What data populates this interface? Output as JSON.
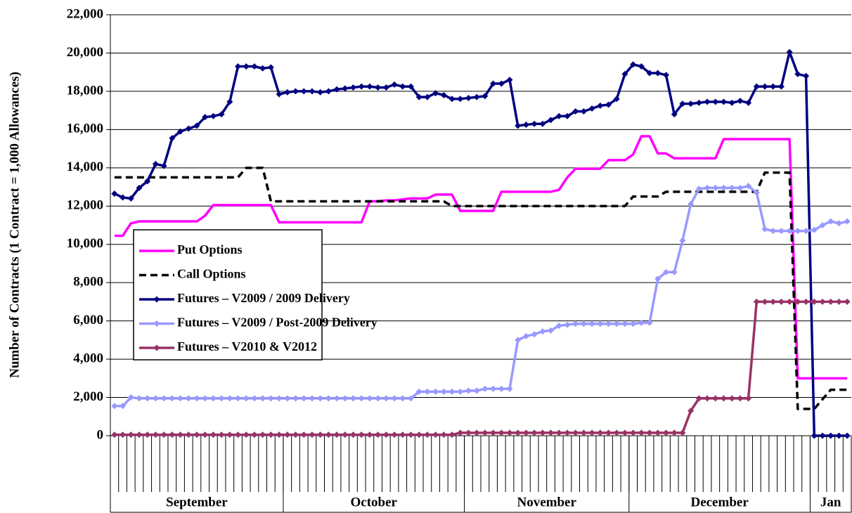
{
  "chart_data": {
    "type": "line",
    "y_label": "Number of Contracts (1 Contract = 1,000 Allowances)",
    "categories": [
      null,
      null,
      null,
      null,
      null,
      null,
      null,
      null,
      null,
      null,
      null,
      null,
      null,
      null,
      null,
      null,
      null,
      null,
      null,
      null,
      null,
      null,
      null,
      null,
      null,
      null,
      null,
      null,
      null,
      null,
      null,
      null,
      null,
      null,
      null,
      null,
      null,
      null,
      null,
      null,
      null,
      null,
      null,
      null,
      null,
      null,
      null,
      null,
      null,
      null,
      null,
      null,
      null,
      null,
      null,
      null,
      null,
      null,
      null,
      null,
      null,
      null,
      null,
      null,
      null,
      null,
      null,
      null,
      null,
      null,
      null,
      null,
      null,
      null,
      null,
      null,
      null,
      null,
      null,
      null,
      null,
      null,
      null,
      null,
      null,
      null,
      null,
      null,
      null,
      null
    ],
    "x_groups": [
      {
        "label": "September",
        "count": 21
      },
      {
        "label": "October",
        "count": 22
      },
      {
        "label": "November",
        "count": 20
      },
      {
        "label": "December",
        "count": 22
      },
      {
        "label": "Jan",
        "count": 5
      }
    ],
    "ylim": [
      0,
      22000
    ],
    "yticks": [
      0,
      {
        "value": 2000,
        "label": "2,000"
      },
      {
        "value": 4000,
        "label": "4,000"
      },
      {
        "value": 6000,
        "label": "6,000"
      },
      {
        "value": 8000,
        "label": "8,000"
      },
      {
        "value": 10000,
        "label": "10,000"
      },
      {
        "value": 12000,
        "label": "12,000"
      },
      {
        "value": 14000,
        "label": "14,000"
      },
      {
        "value": 16000,
        "label": "16,000"
      },
      {
        "value": 18000,
        "label": "18,000"
      },
      {
        "value": 20000,
        "label": "20,000"
      },
      {
        "value": 22000,
        "label": "22,000"
      }
    ],
    "grid": true,
    "legend": "center-left",
    "series": [
      {
        "name": "Put Options",
        "color": "#ff00ff",
        "line_style": "solid",
        "marker": null,
        "values": [
          10450,
          10450,
          11100,
          11200,
          11200,
          11200,
          11200,
          11200,
          11200,
          11200,
          11200,
          11500,
          12050,
          12050,
          12050,
          12050,
          12050,
          12050,
          12050,
          12050,
          11150,
          11150,
          11150,
          11150,
          11150,
          11150,
          11150,
          11150,
          11150,
          11150,
          11150,
          12250,
          12250,
          12300,
          12300,
          12350,
          12400,
          12400,
          12400,
          12600,
          12600,
          12600,
          11750,
          11750,
          11750,
          11750,
          11750,
          12750,
          12750,
          12750,
          12750,
          12750,
          12750,
          12750,
          12850,
          13500,
          13950,
          13950,
          13950,
          13950,
          14400,
          14400,
          14400,
          14700,
          15650,
          15650,
          14750,
          14750,
          14500,
          14500,
          14500,
          14500,
          14500,
          14500,
          15500,
          15500,
          15500,
          15500,
          15500,
          15500,
          15500,
          15500,
          15500,
          3000,
          3000,
          3000,
          3000,
          3000,
          3000,
          3000
        ]
      },
      {
        "name": "Call Options",
        "color": "#000000",
        "line_style": "dashed",
        "marker": null,
        "values": [
          13500,
          13500,
          13500,
          13500,
          13500,
          13500,
          13500,
          13500,
          13500,
          13500,
          13500,
          13500,
          13500,
          13500,
          13500,
          13500,
          14000,
          14000,
          14000,
          12250,
          12250,
          12250,
          12250,
          12250,
          12250,
          12250,
          12250,
          12250,
          12250,
          12250,
          12250,
          12250,
          12250,
          12250,
          12250,
          12250,
          12250,
          12250,
          12250,
          12250,
          12250,
          12000,
          12000,
          12000,
          12000,
          12000,
          12000,
          12000,
          12000,
          12000,
          12000,
          12000,
          12000,
          12000,
          12000,
          12000,
          12000,
          12000,
          12000,
          12000,
          12000,
          12000,
          12000,
          12500,
          12500,
          12500,
          12500,
          12750,
          12750,
          12750,
          12750,
          12750,
          12750,
          12750,
          12750,
          12750,
          12750,
          12750,
          12750,
          13750,
          13750,
          13750,
          13750,
          1400,
          1400,
          1400,
          1900,
          2400,
          2400,
          2400
        ]
      },
      {
        "name": "Futures – V2009 / 2009 Delivery",
        "color": "#000080",
        "line_style": "solid",
        "marker": "diamond",
        "values": [
          12650,
          12450,
          12400,
          12950,
          13300,
          14200,
          14100,
          15550,
          15900,
          16050,
          16200,
          16650,
          16700,
          16800,
          17450,
          19300,
          19300,
          19300,
          19200,
          19250,
          17850,
          17950,
          18000,
          18000,
          18000,
          17950,
          18000,
          18100,
          18150,
          18200,
          18250,
          18250,
          18200,
          18200,
          18350,
          18250,
          18250,
          17700,
          17700,
          17900,
          17800,
          17600,
          17600,
          17650,
          17700,
          17750,
          18400,
          18400,
          18600,
          16200,
          16250,
          16300,
          16300,
          16500,
          16700,
          16700,
          16950,
          16950,
          17100,
          17250,
          17300,
          17600,
          18900,
          19400,
          19300,
          18950,
          18950,
          18850,
          16800,
          17350,
          17350,
          17400,
          17450,
          17450,
          17450,
          17400,
          17500,
          17400,
          18250,
          18250,
          18250,
          18250,
          20050,
          18900,
          18800,
          0,
          0,
          0,
          0,
          0
        ]
      },
      {
        "name": "Futures – V2009 / Post-2009 Delivery",
        "color": "#9999ff",
        "line_style": "solid",
        "marker": "diamond",
        "values": [
          1550,
          1550,
          2000,
          1950,
          1950,
          1950,
          1950,
          1950,
          1950,
          1950,
          1950,
          1950,
          1950,
          1950,
          1950,
          1950,
          1950,
          1950,
          1950,
          1950,
          1950,
          1950,
          1950,
          1950,
          1950,
          1950,
          1950,
          1950,
          1950,
          1950,
          1950,
          1950,
          1950,
          1950,
          1950,
          1950,
          1950,
          2300,
          2300,
          2300,
          2300,
          2300,
          2300,
          2350,
          2350,
          2450,
          2450,
          2450,
          2450,
          5000,
          5200,
          5300,
          5450,
          5500,
          5750,
          5800,
          5850,
          5850,
          5850,
          5850,
          5850,
          5850,
          5850,
          5850,
          5900,
          5900,
          8200,
          8550,
          8550,
          10200,
          12100,
          12900,
          12950,
          12950,
          12950,
          12950,
          12950,
          13050,
          12700,
          10800,
          10700,
          10700,
          10700,
          10700,
          10700,
          10750,
          11000,
          11200,
          11100,
          11200
        ]
      },
      {
        "name": "Futures – V2010 & V2012",
        "color": "#993366",
        "line_style": "solid",
        "marker": "diamond",
        "values": [
          50,
          50,
          50,
          50,
          50,
          50,
          50,
          50,
          50,
          50,
          50,
          50,
          50,
          50,
          50,
          50,
          50,
          50,
          50,
          50,
          50,
          50,
          50,
          50,
          50,
          50,
          50,
          50,
          50,
          50,
          50,
          50,
          50,
          50,
          50,
          50,
          50,
          50,
          50,
          50,
          50,
          50,
          150,
          150,
          150,
          150,
          150,
          150,
          150,
          150,
          150,
          150,
          150,
          150,
          150,
          150,
          150,
          150,
          150,
          150,
          150,
          150,
          150,
          150,
          150,
          150,
          150,
          150,
          150,
          150,
          1300,
          1950,
          1950,
          1950,
          1950,
          1950,
          1950,
          1950,
          7000,
          7000,
          7000,
          7000,
          7000,
          7000,
          7000,
          7000,
          7000,
          7000,
          7000,
          7000
        ]
      }
    ]
  }
}
